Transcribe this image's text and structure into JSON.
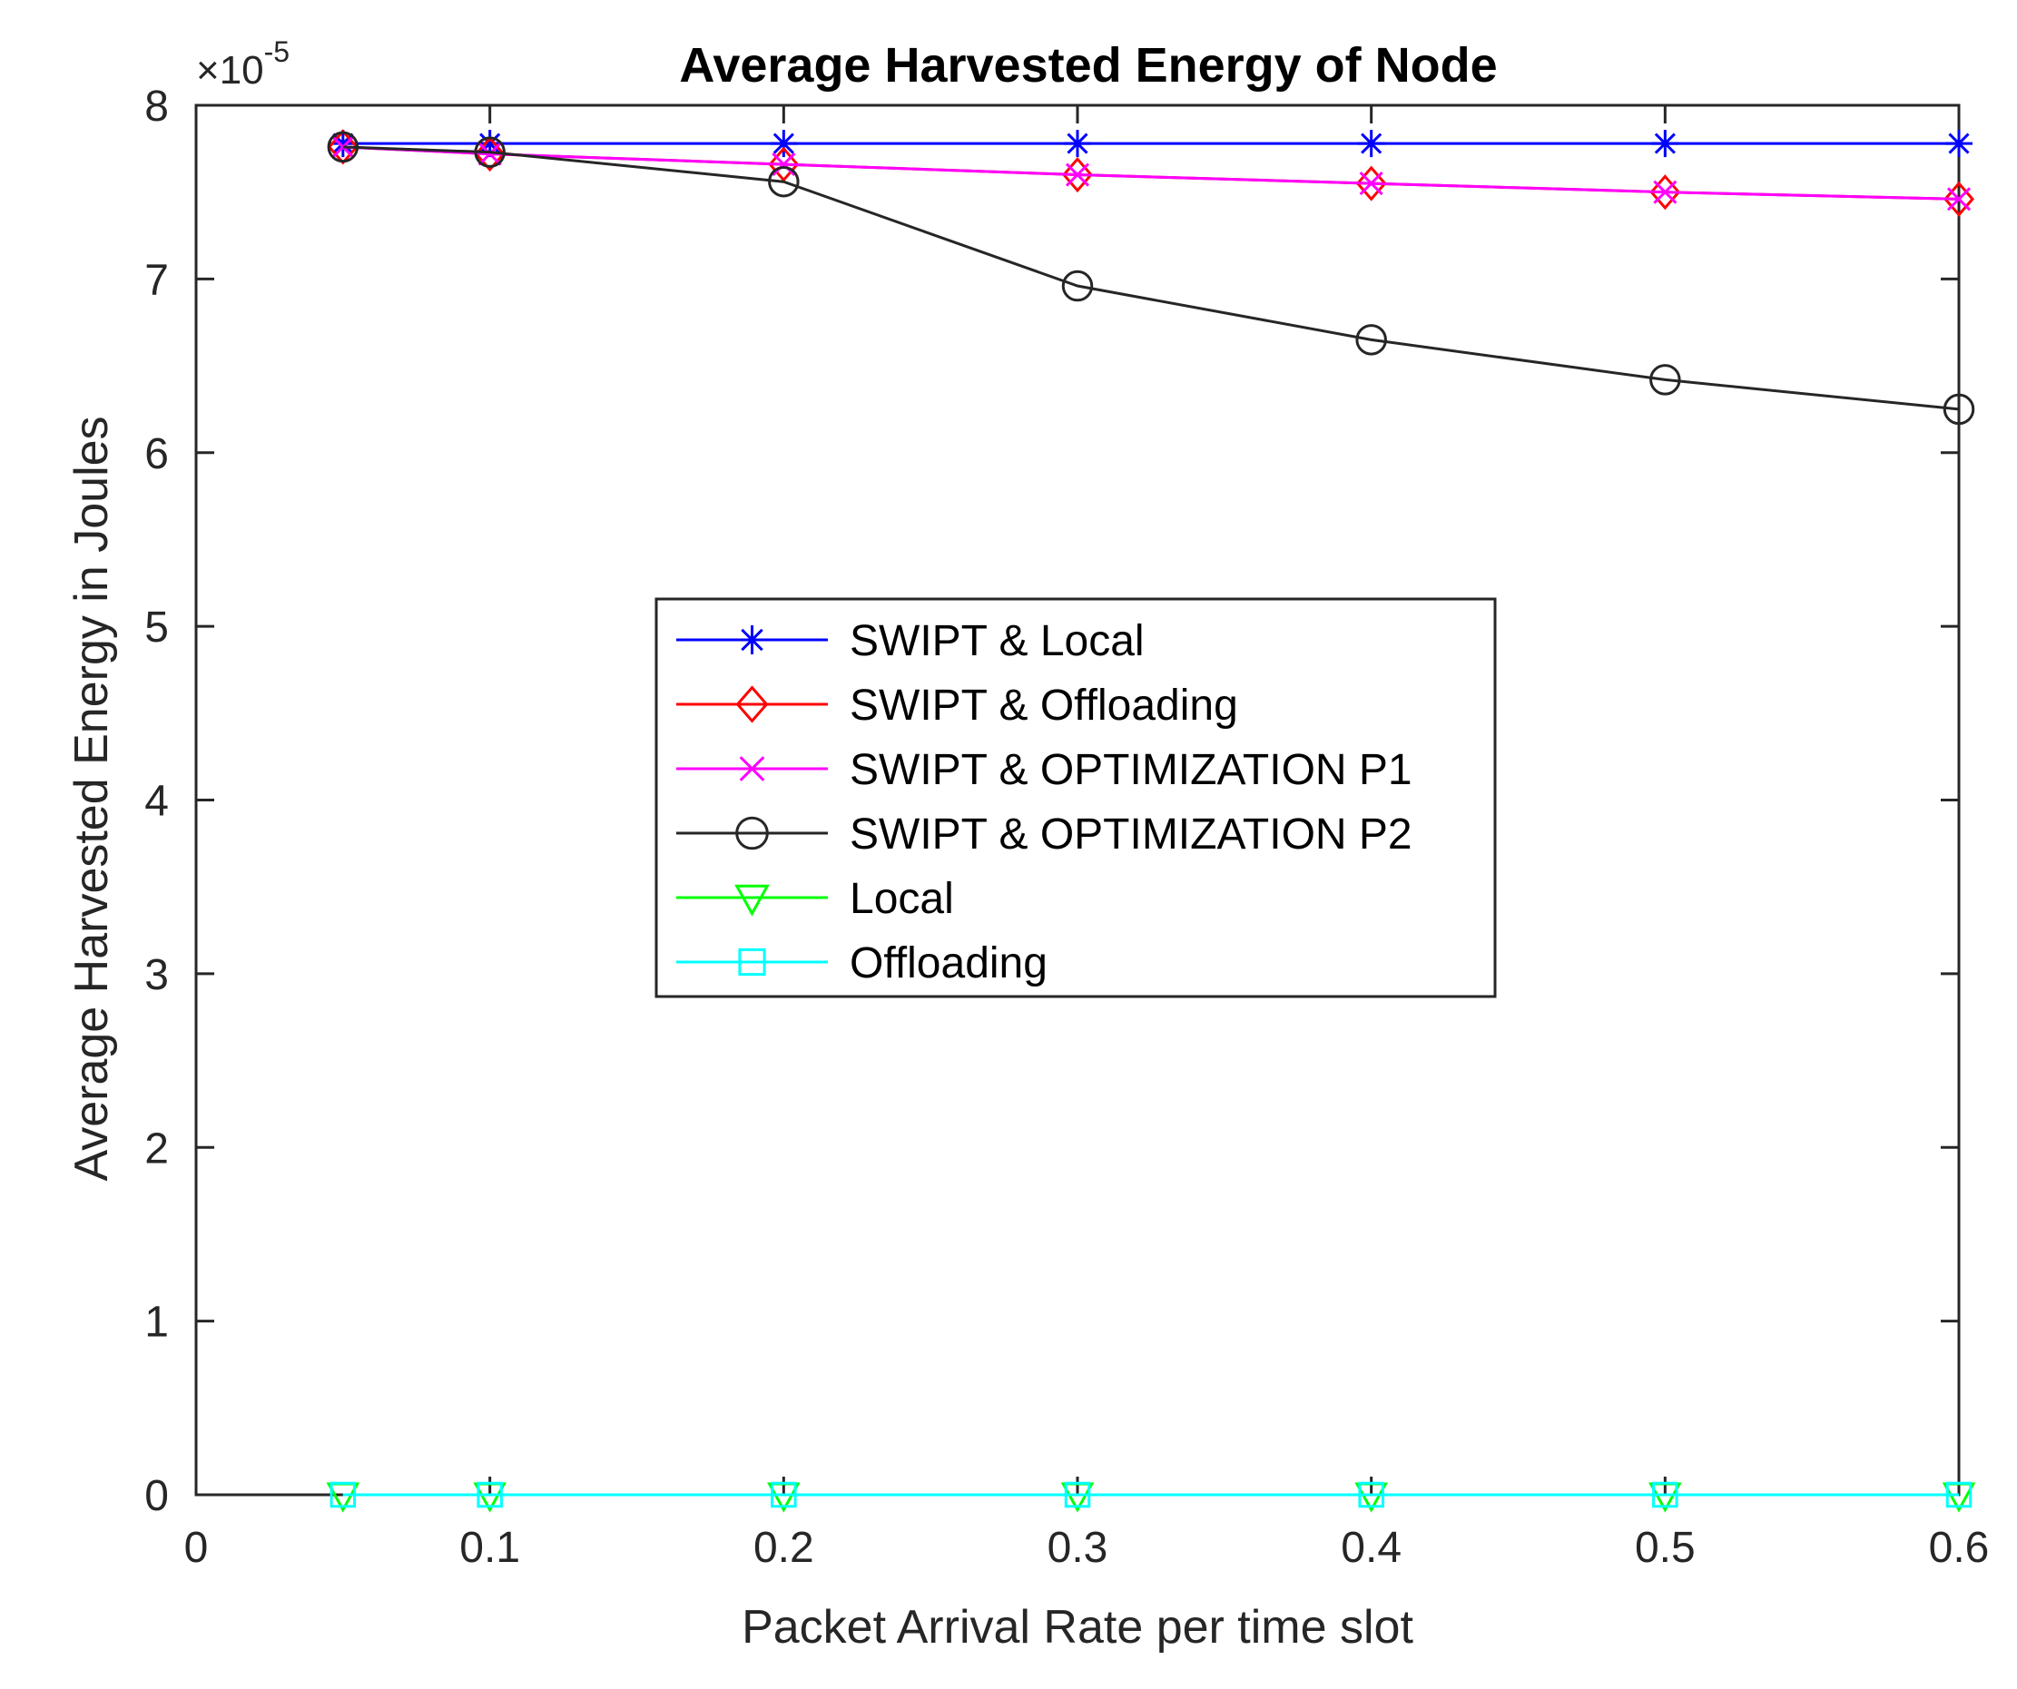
{
  "chart_data": {
    "type": "line",
    "title": "Average Harvested Energy of Node",
    "xlabel": "Packet Arrival Rate per time slot",
    "ylabel": "Average Harvested Energy in Joules",
    "exponent_base": "×10",
    "exponent_power": "-5",
    "xlim": [
      0,
      0.6
    ],
    "ylim": [
      0,
      8
    ],
    "xticks": [
      0,
      0.1,
      0.2,
      0.3,
      0.4,
      0.5,
      0.6
    ],
    "xtick_labels": [
      "0",
      "0.1",
      "0.2",
      "0.3",
      "0.4",
      "0.5",
      "0.6"
    ],
    "yticks": [
      0,
      1,
      2,
      3,
      4,
      5,
      6,
      7,
      8
    ],
    "ytick_labels": [
      "0",
      "1",
      "2",
      "3",
      "4",
      "5",
      "6",
      "7",
      "8"
    ],
    "grid": false,
    "legend_position": "center",
    "x": [
      0.05,
      0.1,
      0.2,
      0.3,
      0.4,
      0.5,
      0.6
    ],
    "series": [
      {
        "name": "SWIPT & Local",
        "color": "#0000ff",
        "marker": "asterisk",
        "values": [
          7.78,
          7.78,
          7.78,
          7.78,
          7.78,
          7.78,
          7.78
        ]
      },
      {
        "name": "SWIPT & Offloading",
        "color": "#ff0000",
        "marker": "diamond",
        "values": [
          7.76,
          7.72,
          7.66,
          7.6,
          7.55,
          7.5,
          7.46
        ]
      },
      {
        "name": "SWIPT & OPTIMIZATION P1",
        "color": "#ff00ff",
        "marker": "x",
        "values": [
          7.76,
          7.72,
          7.66,
          7.6,
          7.55,
          7.5,
          7.46
        ]
      },
      {
        "name": "SWIPT & OPTIMIZATION P2",
        "color": "#262626",
        "marker": "circle",
        "values": [
          7.76,
          7.73,
          7.56,
          6.96,
          6.65,
          6.42,
          6.25
        ]
      },
      {
        "name": "Local",
        "color": "#00ff00",
        "marker": "triangle-down",
        "values": [
          0,
          0,
          0,
          0,
          0,
          0,
          0
        ]
      },
      {
        "name": "Offloading",
        "color": "#00ffff",
        "marker": "square",
        "values": [
          0,
          0,
          0,
          0,
          0,
          0,
          0
        ]
      }
    ]
  }
}
